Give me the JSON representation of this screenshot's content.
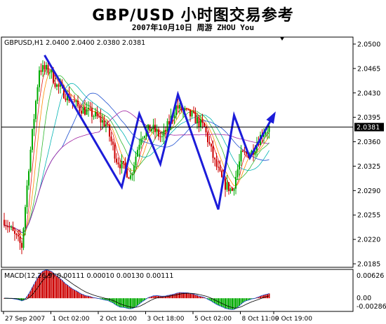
{
  "header": {
    "title": "GBP/USD 小时图交易参考",
    "subtitle": "2007年10月10日   周游 ZHOU You"
  },
  "chart_data": [
    {
      "type": "candlestick",
      "info_label": "GBPUSD,H1 2.0400 2.0400 2.0380 2.0381",
      "ylim": [
        2.018,
        2.051
      ],
      "y_ticks": [
        "2.0500",
        "2.0465",
        "2.0430",
        "2.0395",
        "2.0360",
        "2.0325",
        "2.0290",
        "2.0255",
        "2.0220",
        "2.0185"
      ],
      "x_ticks": [
        "27 Sep 2007",
        "1 Oct 02:00",
        "2 Oct 10:00",
        "3 Oct 18:00",
        "5 Oct 02:00",
        "8 Oct 11:00",
        "9 Oct 19:00"
      ],
      "current_price": "2.0381",
      "forecast_path": [
        {
          "bar": 23,
          "price": 2.0484
        },
        {
          "bar": 67,
          "price": 2.0295
        },
        {
          "bar": 77,
          "price": 2.04
        },
        {
          "bar": 89,
          "price": 2.0328
        },
        {
          "bar": 99,
          "price": 2.0428
        },
        {
          "bar": 122,
          "price": 2.0263
        },
        {
          "bar": 131,
          "price": 2.0398
        },
        {
          "bar": 140,
          "price": 2.0337
        },
        {
          "bar": 154,
          "price": 2.04
        }
      ],
      "colors": {
        "bull_candle": "#00aa00",
        "bear_candle": "#cc0000",
        "forecast_line": "#1c1cd9",
        "price_line": "#000000"
      }
    },
    {
      "type": "macd",
      "label": "MACD(12,26,9) 0.00111 0.00010 0.00130 0.00111",
      "y_ticks": [
        "0.00626",
        "0.00",
        "-0.00286"
      ],
      "ylim": [
        -0.00286,
        0.00626
      ]
    }
  ]
}
